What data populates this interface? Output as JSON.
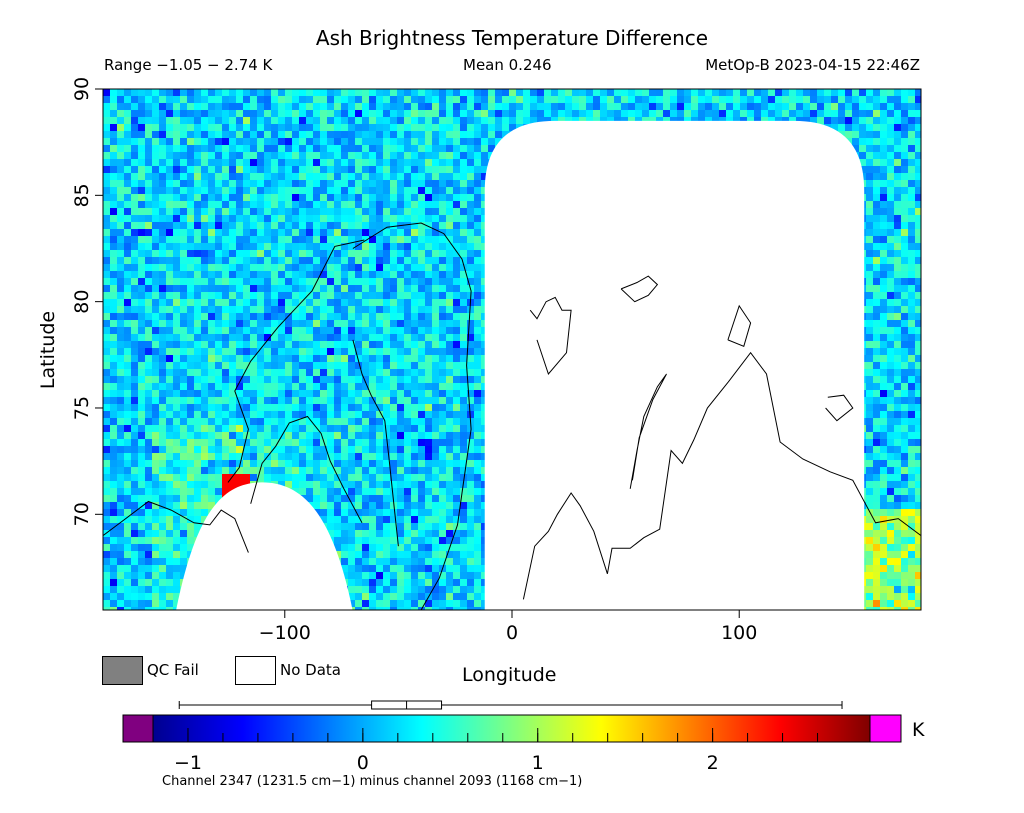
{
  "header": {
    "title": "Ash Brightness Temperature Difference",
    "range": "Range −1.05 − 2.74 K",
    "mean": "Mean 0.246",
    "satellite_time": "MetOp-B 2023-04-15 22:46Z"
  },
  "legend": {
    "qc_fail": "QC Fail",
    "no_data": "No Data",
    "qc_color": "#808080",
    "nodata_color": "#ffffff"
  },
  "colorbar": {
    "unit": "K",
    "min": -1.2,
    "max": 2.9,
    "ticks": [
      -1,
      0,
      1,
      2
    ],
    "tick_labels": [
      "−1",
      "0",
      "1",
      "2"
    ],
    "under_color": "#800080",
    "over_color": "#ff00ff",
    "boxplot": {
      "min": -1.05,
      "q1": 0.05,
      "median": 0.25,
      "q3": 0.45,
      "max": 2.74
    }
  },
  "footnote": "Channel 2347 (1231.5 cm−1) minus channel 2093 (1168 cm−1)",
  "chart_data": {
    "type": "heatmap",
    "title": "Ash Brightness Temperature Difference",
    "xlabel": "Longitude",
    "ylabel": "Latitude",
    "xlim": [
      -180,
      180
    ],
    "ylim": [
      65.5,
      90
    ],
    "x_ticks": [
      -100,
      0,
      100
    ],
    "x_tick_labels": [
      "−100",
      "0",
      "100"
    ],
    "y_ticks": [
      70,
      75,
      80,
      85,
      90
    ],
    "y_tick_labels": [
      "70",
      "75",
      "80",
      "85",
      "90"
    ],
    "value_range": [
      -1.05,
      2.74
    ],
    "mean": 0.246,
    "units": "K",
    "no_data_regions": [
      {
        "name": "eastern-gap",
        "lon_range": [
          -12,
          155
        ],
        "lat_max": 88.5
      },
      {
        "name": "western-gap",
        "lon_min": -148,
        "lon_max": -70,
        "lat_top": 71.5,
        "center_lon": -110
      }
    ]
  }
}
